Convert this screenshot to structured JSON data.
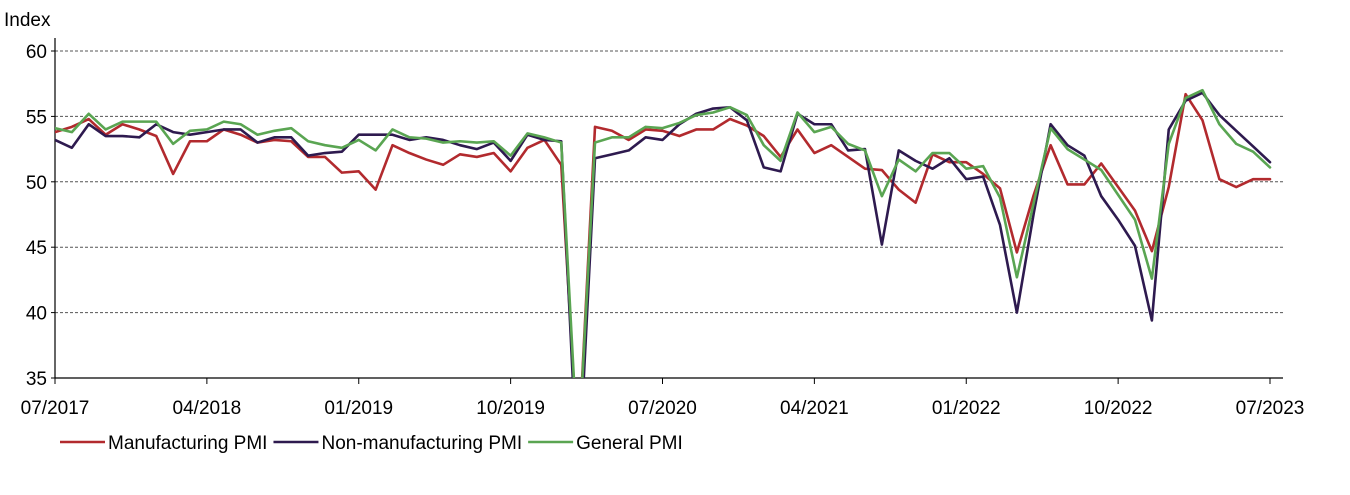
{
  "chart_data": {
    "type": "line",
    "ylabel": "Index",
    "ylim": [
      35,
      60
    ],
    "yticks": [
      35,
      40,
      45,
      50,
      55,
      60
    ],
    "grid": "horizontal dashed",
    "legend_position": "bottom",
    "x_start": "07/2017",
    "x_tick_labels": [
      "07/2017",
      "04/2018",
      "01/2019",
      "10/2019",
      "07/2020",
      "04/2021",
      "01/2022",
      "10/2022",
      "07/2023"
    ],
    "x": [
      "07/2017",
      "08/2017",
      "09/2017",
      "10/2017",
      "11/2017",
      "12/2017",
      "01/2018",
      "02/2018",
      "03/2018",
      "04/2018",
      "05/2018",
      "06/2018",
      "07/2018",
      "08/2018",
      "09/2018",
      "10/2018",
      "11/2018",
      "12/2018",
      "01/2019",
      "02/2019",
      "03/2019",
      "04/2019",
      "05/2019",
      "06/2019",
      "07/2019",
      "08/2019",
      "09/2019",
      "10/2019",
      "11/2019",
      "12/2019",
      "01/2020",
      "02/2020",
      "03/2020",
      "04/2020",
      "05/2020",
      "06/2020",
      "07/2020",
      "08/2020",
      "09/2020",
      "10/2020",
      "11/2020",
      "12/2020",
      "01/2021",
      "02/2021",
      "03/2021",
      "04/2021",
      "05/2021",
      "06/2021",
      "07/2021",
      "08/2021",
      "09/2021",
      "10/2021",
      "11/2021",
      "12/2021",
      "01/2022",
      "02/2022",
      "03/2022",
      "04/2022",
      "05/2022",
      "06/2022",
      "07/2022",
      "08/2022",
      "09/2022",
      "10/2022",
      "11/2022",
      "12/2022",
      "01/2023",
      "02/2023",
      "03/2023",
      "04/2023",
      "05/2023",
      "06/2023",
      "07/2023"
    ],
    "series": [
      {
        "name": "Manufacturing PMI",
        "color": "#b22a2e",
        "values": [
          53.8,
          54.2,
          54.8,
          53.6,
          54.4,
          54.0,
          53.5,
          50.6,
          53.1,
          53.1,
          54.0,
          53.6,
          53.0,
          53.2,
          53.1,
          51.9,
          51.9,
          50.7,
          50.8,
          49.4,
          52.8,
          52.2,
          51.7,
          51.3,
          52.1,
          51.9,
          52.2,
          50.8,
          52.6,
          53.2,
          51.3,
          29.0,
          54.2,
          53.9,
          53.2,
          54.0,
          53.9,
          53.5,
          54.0,
          54.0,
          54.8,
          54.3,
          53.5,
          51.9,
          54.0,
          52.2,
          52.8,
          51.9,
          51.0,
          50.9,
          49.4,
          48.4,
          52.1,
          51.5,
          51.5,
          50.6,
          49.5,
          44.6,
          49.0,
          52.8,
          49.8,
          49.8,
          51.4,
          49.6,
          47.8,
          44.7,
          49.6,
          56.7,
          54.7,
          50.2,
          49.6,
          50.2,
          50.2
        ]
      },
      {
        "name": "Non-manufacturing PMI",
        "color": "#2e1a4f",
        "values": [
          53.2,
          52.6,
          54.4,
          53.5,
          53.5,
          53.4,
          54.4,
          53.8,
          53.6,
          53.8,
          54.0,
          54.0,
          53.0,
          53.4,
          53.4,
          52.0,
          52.2,
          52.3,
          53.6,
          53.6,
          53.6,
          53.2,
          53.4,
          53.2,
          52.8,
          52.5,
          53.0,
          51.6,
          53.6,
          53.2,
          53.1,
          26.5,
          51.8,
          52.1,
          52.4,
          53.4,
          53.2,
          54.4,
          55.2,
          55.6,
          55.7,
          54.7,
          51.1,
          50.8,
          55.2,
          54.4,
          54.4,
          52.4,
          52.5,
          45.2,
          52.4,
          51.6,
          51.0,
          51.8,
          50.2,
          50.4,
          46.7,
          40.0,
          47.6,
          54.4,
          52.8,
          52.0,
          48.9,
          47.1,
          45.1,
          39.4,
          54.0,
          56.2,
          56.8,
          55.1,
          53.9,
          52.7,
          51.5
        ]
      },
      {
        "name": "General PMI",
        "color": "#5aa552",
        "values": [
          54.1,
          53.8,
          55.2,
          54.0,
          54.6,
          54.6,
          54.6,
          52.9,
          53.9,
          54.0,
          54.6,
          54.4,
          53.6,
          53.9,
          54.1,
          53.1,
          52.8,
          52.6,
          53.2,
          52.4,
          54.0,
          53.4,
          53.3,
          53.0,
          53.1,
          53.0,
          53.1,
          52.0,
          53.7,
          53.4,
          53.0,
          28.9,
          53.0,
          53.4,
          53.4,
          54.2,
          54.1,
          54.5,
          55.1,
          55.3,
          55.7,
          55.1,
          52.8,
          51.6,
          55.3,
          53.8,
          54.2,
          52.9,
          52.4,
          48.9,
          51.7,
          50.8,
          52.2,
          52.2,
          51.0,
          51.2,
          48.8,
          42.7,
          48.4,
          54.1,
          52.5,
          51.7,
          50.9,
          49.0,
          47.1,
          42.6,
          52.9,
          56.4,
          57.0,
          54.4,
          52.9,
          52.3,
          51.1
        ]
      }
    ]
  }
}
